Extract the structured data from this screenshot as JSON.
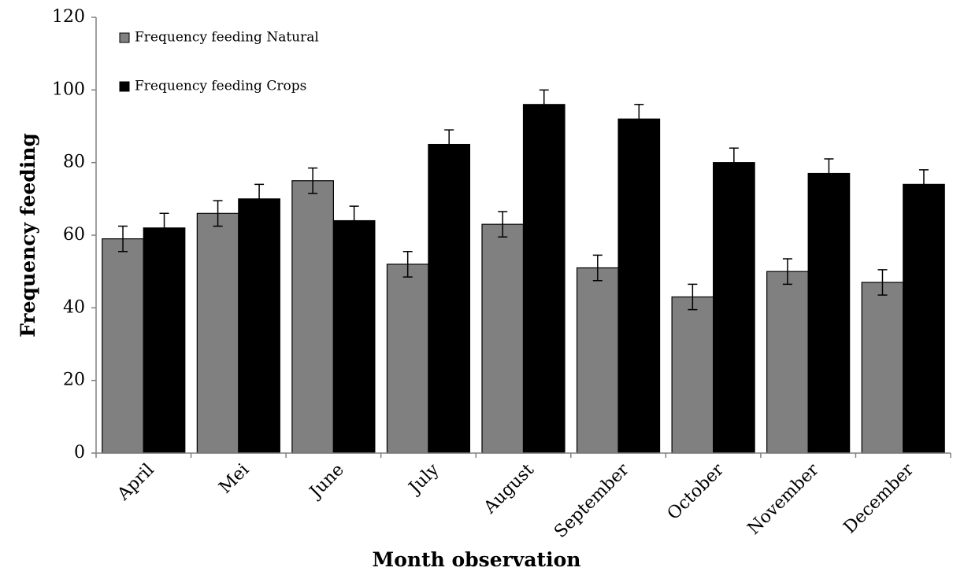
{
  "chart_data": {
    "type": "bar",
    "x_label": "Month observation",
    "y_label": "Frequency feeding",
    "categories": [
      "April",
      "Mei",
      "June",
      "July",
      "August",
      "September",
      "October",
      "November",
      "December"
    ],
    "series": [
      {
        "name": "Frequency feeding Natural",
        "color": "#808080",
        "values": [
          59,
          66,
          75,
          52,
          63,
          51,
          43,
          50,
          47
        ],
        "errors": [
          3.5,
          3.5,
          3.5,
          3.5,
          3.5,
          3.5,
          3.5,
          3.5,
          3.5
        ]
      },
      {
        "name": "Frequency feeding Crops",
        "color": "#000000",
        "values": [
          62,
          70,
          64,
          85,
          96,
          92,
          80,
          77,
          74
        ],
        "errors": [
          4,
          4,
          4,
          4,
          4,
          4,
          4,
          4,
          4
        ]
      }
    ],
    "ylim": [
      0,
      120
    ],
    "yticks": [
      0,
      20,
      40,
      60,
      80,
      100,
      120
    ],
    "grid": false,
    "legend": "top-left"
  }
}
